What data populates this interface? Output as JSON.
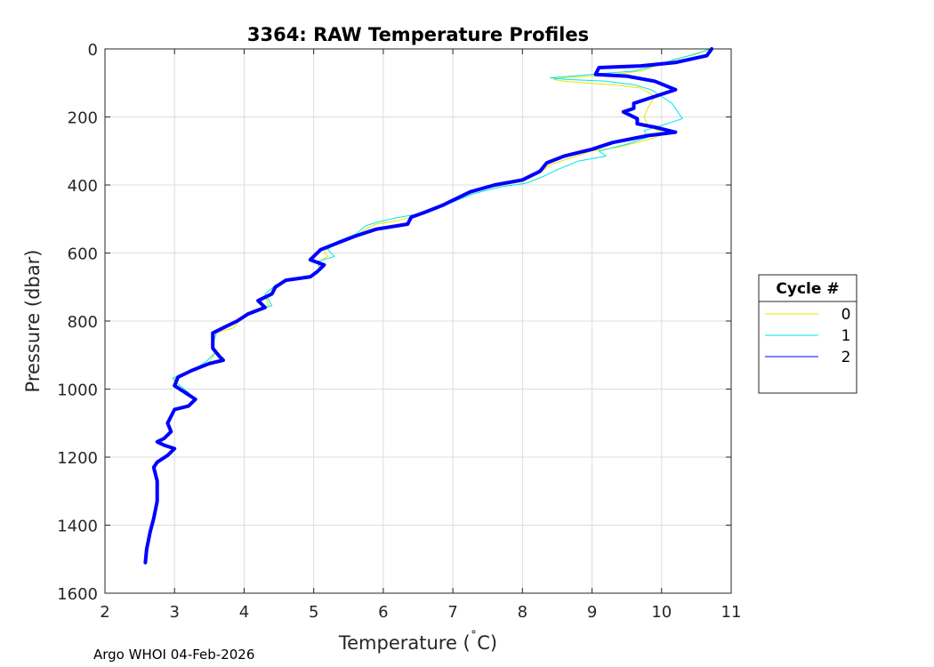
{
  "footer": "Argo WHOI 04-Feb-2026",
  "chart_data": {
    "type": "line",
    "title": "3364: RAW Temperature Profiles",
    "xlabel_main": "Temperature (",
    "xlabel_degree": "˚",
    "xlabel_unit": "C)",
    "ylabel": "Pressure (dbar)",
    "xlim": [
      2,
      11
    ],
    "ylim": [
      0,
      1600
    ],
    "y_reversed": true,
    "x_ticks": [
      2,
      3,
      4,
      5,
      6,
      7,
      8,
      9,
      10,
      11
    ],
    "y_ticks": [
      0,
      200,
      400,
      600,
      800,
      1000,
      1200,
      1400,
      1600
    ],
    "grid": true,
    "legend": {
      "title": "Cycle #",
      "placement": "right-outside"
    },
    "series": [
      {
        "name": "0",
        "color": "#e6e600",
        "points": [
          [
            10.7,
            0
          ],
          [
            10.55,
            10
          ],
          [
            10.3,
            25
          ],
          [
            10.0,
            45
          ],
          [
            9.7,
            65
          ],
          [
            9.3,
            75
          ],
          [
            8.6,
            85
          ],
          [
            8.45,
            90
          ],
          [
            8.6,
            95
          ],
          [
            8.9,
            100
          ],
          [
            9.3,
            105
          ],
          [
            9.7,
            115
          ],
          [
            9.9,
            140
          ],
          [
            9.8,
            175
          ],
          [
            9.75,
            200
          ],
          [
            9.8,
            225
          ],
          [
            10.05,
            250
          ],
          [
            9.75,
            270
          ],
          [
            9.35,
            290
          ],
          [
            9.0,
            300
          ],
          [
            8.7,
            320
          ],
          [
            8.4,
            340
          ],
          [
            8.25,
            365
          ],
          [
            8.0,
            390
          ],
          [
            7.6,
            405
          ],
          [
            7.3,
            420
          ],
          [
            7.0,
            450
          ],
          [
            6.7,
            470
          ],
          [
            6.5,
            490
          ],
          [
            6.2,
            505
          ],
          [
            5.9,
            515
          ],
          [
            5.75,
            530
          ],
          [
            5.6,
            550
          ],
          [
            5.3,
            570
          ],
          [
            5.15,
            595
          ],
          [
            5.2,
            610
          ],
          [
            5.05,
            630
          ],
          [
            5.1,
            650
          ],
          [
            4.95,
            665
          ],
          [
            4.7,
            675
          ],
          [
            4.5,
            690
          ],
          [
            4.3,
            720
          ],
          [
            4.35,
            755
          ],
          [
            4.1,
            770
          ],
          [
            3.95,
            795
          ],
          [
            3.85,
            820
          ],
          [
            3.6,
            835
          ],
          [
            3.55,
            870
          ],
          [
            3.6,
            890
          ],
          [
            3.5,
            920
          ],
          [
            3.3,
            940
          ],
          [
            3.15,
            955
          ],
          [
            3.0,
            965
          ],
          [
            3.0,
            990
          ],
          [
            3.15,
            1010
          ],
          [
            3.3,
            1030
          ],
          [
            3.2,
            1050
          ],
          [
            3.0,
            1060
          ],
          [
            2.95,
            1080
          ],
          [
            2.9,
            1100
          ],
          [
            2.95,
            1125
          ],
          [
            2.85,
            1145
          ],
          [
            2.75,
            1155
          ],
          [
            2.85,
            1165
          ],
          [
            3.0,
            1175
          ],
          [
            2.9,
            1195
          ],
          [
            2.75,
            1215
          ],
          [
            2.7,
            1230
          ],
          [
            2.75,
            1270
          ],
          [
            2.75,
            1330
          ],
          [
            2.7,
            1380
          ],
          [
            2.65,
            1420
          ],
          [
            2.6,
            1470
          ],
          [
            2.58,
            1510
          ]
        ]
      },
      {
        "name": "1",
        "color": "#00e6e6",
        "points": [
          [
            10.7,
            0
          ],
          [
            10.5,
            15
          ],
          [
            10.2,
            30
          ],
          [
            9.9,
            50
          ],
          [
            9.6,
            65
          ],
          [
            9.3,
            70
          ],
          [
            8.7,
            80
          ],
          [
            8.4,
            85
          ],
          [
            8.65,
            90
          ],
          [
            9.2,
            95
          ],
          [
            9.6,
            105
          ],
          [
            9.85,
            120
          ],
          [
            10.0,
            140
          ],
          [
            10.15,
            160
          ],
          [
            10.25,
            190
          ],
          [
            10.3,
            205
          ],
          [
            10.0,
            225
          ],
          [
            9.75,
            240
          ],
          [
            9.8,
            260
          ],
          [
            9.5,
            280
          ],
          [
            9.1,
            300
          ],
          [
            9.2,
            315
          ],
          [
            8.8,
            330
          ],
          [
            8.5,
            355
          ],
          [
            8.3,
            375
          ],
          [
            8.05,
            395
          ],
          [
            7.7,
            405
          ],
          [
            7.3,
            425
          ],
          [
            7.0,
            450
          ],
          [
            6.75,
            470
          ],
          [
            6.5,
            485
          ],
          [
            6.1,
            500
          ],
          [
            5.9,
            510
          ],
          [
            5.75,
            520
          ],
          [
            5.6,
            545
          ],
          [
            5.35,
            565
          ],
          [
            5.2,
            590
          ],
          [
            5.3,
            610
          ],
          [
            5.05,
            625
          ],
          [
            5.1,
            650
          ],
          [
            4.95,
            665
          ],
          [
            4.65,
            675
          ],
          [
            4.45,
            695
          ],
          [
            4.3,
            720
          ],
          [
            4.4,
            755
          ],
          [
            4.15,
            770
          ],
          [
            4.0,
            790
          ],
          [
            3.8,
            810
          ],
          [
            3.6,
            835
          ],
          [
            3.55,
            870
          ],
          [
            3.6,
            890
          ],
          [
            3.45,
            920
          ],
          [
            3.25,
            945
          ],
          [
            3.1,
            958
          ],
          [
            2.97,
            968
          ],
          [
            3.05,
            985
          ],
          [
            3.2,
            1010
          ],
          [
            3.3,
            1035
          ],
          [
            3.15,
            1050
          ],
          [
            3.0,
            1060
          ],
          [
            2.95,
            1080
          ],
          [
            2.9,
            1100
          ],
          [
            2.95,
            1125
          ],
          [
            2.85,
            1145
          ],
          [
            2.75,
            1155
          ],
          [
            2.85,
            1165
          ],
          [
            3.0,
            1175
          ],
          [
            2.9,
            1195
          ],
          [
            2.75,
            1215
          ],
          [
            2.7,
            1230
          ],
          [
            2.75,
            1270
          ],
          [
            2.75,
            1330
          ],
          [
            2.7,
            1380
          ],
          [
            2.65,
            1420
          ],
          [
            2.6,
            1470
          ],
          [
            2.58,
            1510
          ]
        ]
      },
      {
        "name": "2",
        "color": "#0000ff",
        "points": [
          [
            10.72,
            0
          ],
          [
            10.65,
            20
          ],
          [
            10.2,
            40
          ],
          [
            9.7,
            50
          ],
          [
            9.1,
            55
          ],
          [
            9.05,
            75
          ],
          [
            9.5,
            80
          ],
          [
            9.9,
            95
          ],
          [
            10.2,
            120
          ],
          [
            9.9,
            140
          ],
          [
            9.6,
            160
          ],
          [
            9.6,
            175
          ],
          [
            9.45,
            185
          ],
          [
            9.65,
            205
          ],
          [
            9.65,
            220
          ],
          [
            9.9,
            230
          ],
          [
            10.2,
            245
          ],
          [
            9.8,
            255
          ],
          [
            9.3,
            275
          ],
          [
            9.0,
            295
          ],
          [
            8.6,
            315
          ],
          [
            8.35,
            335
          ],
          [
            8.25,
            360
          ],
          [
            8.0,
            385
          ],
          [
            7.6,
            400
          ],
          [
            7.25,
            420
          ],
          [
            7.0,
            445
          ],
          [
            6.85,
            460
          ],
          [
            6.6,
            480
          ],
          [
            6.4,
            495
          ],
          [
            6.35,
            515
          ],
          [
            5.9,
            530
          ],
          [
            5.6,
            550
          ],
          [
            5.35,
            570
          ],
          [
            5.1,
            590
          ],
          [
            4.95,
            620
          ],
          [
            5.15,
            635
          ],
          [
            5.05,
            655
          ],
          [
            4.95,
            670
          ],
          [
            4.6,
            680
          ],
          [
            4.45,
            700
          ],
          [
            4.4,
            720
          ],
          [
            4.2,
            740
          ],
          [
            4.3,
            760
          ],
          [
            4.05,
            780
          ],
          [
            3.9,
            800
          ],
          [
            3.75,
            815
          ],
          [
            3.55,
            835
          ],
          [
            3.55,
            880
          ],
          [
            3.65,
            905
          ],
          [
            3.7,
            915
          ],
          [
            3.5,
            925
          ],
          [
            3.25,
            945
          ],
          [
            3.05,
            965
          ],
          [
            3.0,
            990
          ],
          [
            3.15,
            1010
          ],
          [
            3.3,
            1030
          ],
          [
            3.2,
            1050
          ],
          [
            3.0,
            1060
          ],
          [
            2.95,
            1080
          ],
          [
            2.9,
            1100
          ],
          [
            2.95,
            1125
          ],
          [
            2.85,
            1145
          ],
          [
            2.75,
            1155
          ],
          [
            2.85,
            1165
          ],
          [
            3.0,
            1175
          ],
          [
            2.9,
            1195
          ],
          [
            2.75,
            1215
          ],
          [
            2.7,
            1230
          ],
          [
            2.75,
            1270
          ],
          [
            2.75,
            1330
          ],
          [
            2.7,
            1380
          ],
          [
            2.65,
            1420
          ],
          [
            2.6,
            1470
          ],
          [
            2.58,
            1510
          ]
        ]
      }
    ]
  }
}
